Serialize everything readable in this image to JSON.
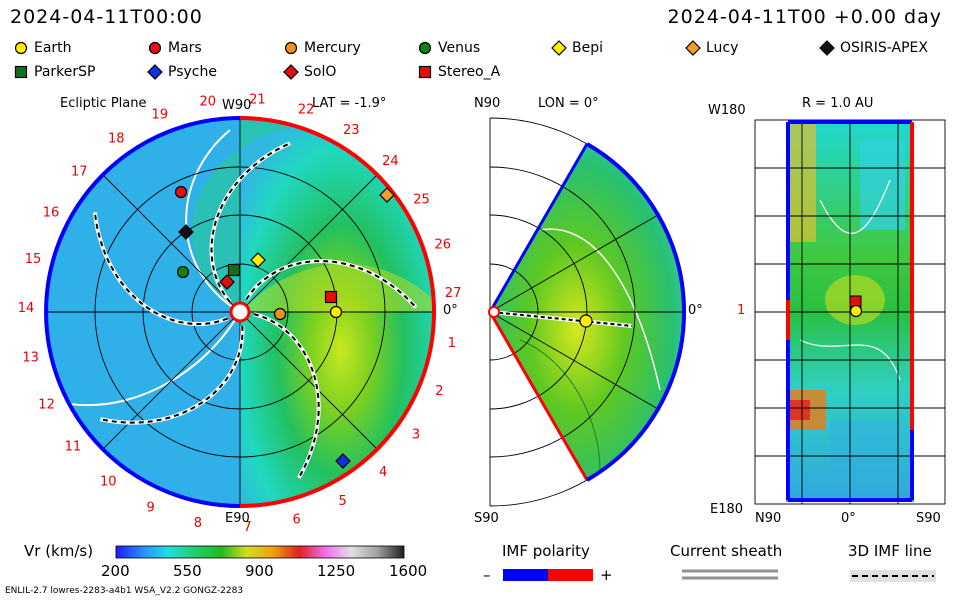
{
  "header": {
    "left_time": "2024-04-11T00:00",
    "right_time": "2024-04-11T00 +0.00 day"
  },
  "legend": [
    {
      "name": "Earth",
      "shape": "circle",
      "color": "#ffee00"
    },
    {
      "name": "Mars",
      "shape": "circle",
      "color": "#e01010"
    },
    {
      "name": "Mercury",
      "shape": "circle",
      "color": "#f09020"
    },
    {
      "name": "Venus",
      "shape": "circle",
      "color": "#108010"
    },
    {
      "name": "Bepi",
      "shape": "diamond",
      "color": "#ffee00"
    },
    {
      "name": "Lucy",
      "shape": "diamond",
      "color": "#f0a020"
    },
    {
      "name": "OSIRIS-APEX",
      "shape": "diamond",
      "color": "#111111"
    },
    {
      "name": "ParkerSP",
      "shape": "square",
      "color": "#107020"
    },
    {
      "name": "Psyche",
      "shape": "diamond",
      "color": "#1030e0"
    },
    {
      "name": "SolO",
      "shape": "diamond",
      "color": "#e01010"
    },
    {
      "name": "Stereo_A",
      "shape": "square",
      "color": "#e01010"
    }
  ],
  "panel1": {
    "title": "Ecliptic Plane",
    "top_label": "W90",
    "lat_label": "LAT = -1.9°",
    "bottom_label": "E90",
    "right_label": "0°",
    "sectors": [
      "19",
      "20",
      "21",
      "22",
      "23",
      "24",
      "25",
      "26",
      "27",
      "1",
      "2",
      "3",
      "4",
      "5",
      "6",
      "7",
      "8",
      "9",
      "10",
      "11",
      "12",
      "13",
      "14",
      "15",
      "16",
      "17",
      "18"
    ]
  },
  "panel2": {
    "top_label": "N90",
    "lon_label": "LON = 0°",
    "bottom_label": "S90",
    "right_label": "0°"
  },
  "panel3": {
    "r_label": "R = 1.0 AU",
    "top_label": "W180",
    "mid_label": "1",
    "bottom_label": "E180",
    "x_left": "N90",
    "x_mid": "0°",
    "x_right": "S90"
  },
  "colorbar": {
    "label": "Vr (km/s)",
    "ticks": [
      "200",
      "550",
      "900",
      "1250",
      "1600"
    ],
    "stops": [
      "#1a1aff",
      "#2a8cff",
      "#20e0e0",
      "#20d070",
      "#22b822",
      "#d0e020",
      "#f0a010",
      "#e02020",
      "#f070f0",
      "#e0e0e0",
      "#a0a0a0",
      "#202020"
    ]
  },
  "imf": {
    "label": "IMF polarity",
    "minus": "–",
    "plus": "+",
    "neg_color": "#0010ff",
    "pos_color": "#ff0000"
  },
  "sheath": {
    "label": "Current sheath"
  },
  "imfline": {
    "label": "3D IMF line"
  },
  "footer": {
    "left": "ENLIL-2.7 lowres-2283-a4b1 WSA_V2.2 GONGZ-2283"
  }
}
